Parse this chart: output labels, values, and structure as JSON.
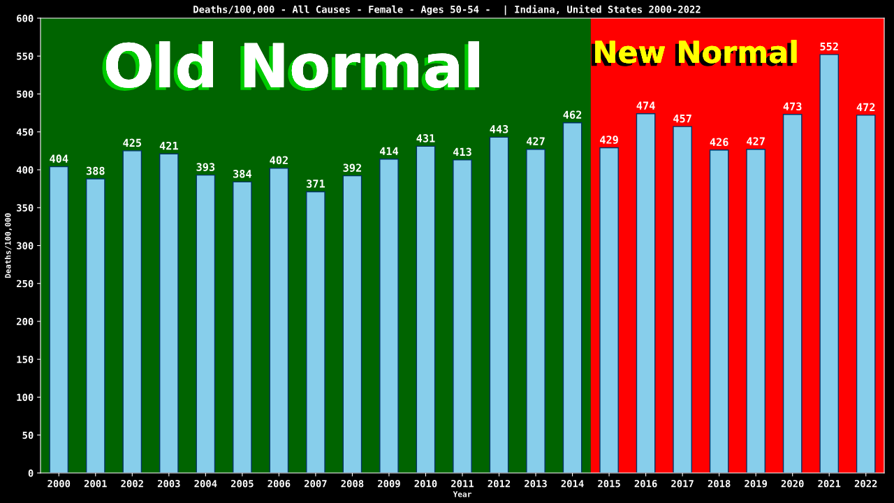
{
  "chart_data": {
    "type": "bar",
    "title": "Deaths/100,000 - All Causes - Female - Ages 50-54 -  | Indiana, United States 2000-2022",
    "xlabel": "Year",
    "ylabel": "Deaths/100,000",
    "categories": [
      "2000",
      "2001",
      "2002",
      "2003",
      "2004",
      "2005",
      "2006",
      "2007",
      "2008",
      "2009",
      "2010",
      "2011",
      "2012",
      "2013",
      "2014",
      "2015",
      "2016",
      "2017",
      "2018",
      "2019",
      "2020",
      "2021",
      "2022"
    ],
    "values": [
      404,
      388,
      425,
      421,
      393,
      384,
      402,
      371,
      392,
      414,
      431,
      413,
      443,
      427,
      462,
      429,
      474,
      457,
      426,
      427,
      473,
      552,
      472
    ],
    "color": "#87ceeb",
    "data_labels": true,
    "ylim": [
      0,
      600
    ],
    "yticks": [
      0,
      50,
      100,
      150,
      200,
      250,
      300,
      350,
      400,
      450,
      500,
      550,
      600
    ],
    "grid": false,
    "legend": false,
    "bands": [
      {
        "axis": "x",
        "from": "2000",
        "to": "2014",
        "label": "Old Normal",
        "color": "#006400"
      },
      {
        "axis": "x",
        "from": "2015",
        "to": "2022",
        "label": "New Normal",
        "color": "#ff0000"
      }
    ]
  }
}
